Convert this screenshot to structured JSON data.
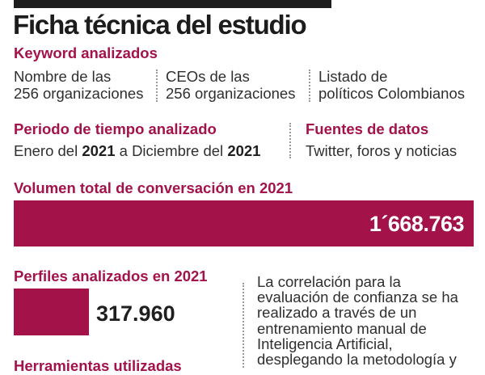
{
  "title": "Ficha técnica del estudio",
  "keywords": {
    "label": "Keyword analizados",
    "items": [
      {
        "line1": "Nombre de las",
        "line2": "256 organizaciones"
      },
      {
        "line1": "CEOs de las",
        "line2": "256 organizaciones"
      },
      {
        "line1": "Listado de",
        "line2": "políticos Colombianos"
      }
    ]
  },
  "period": {
    "label": "Periodo de tiempo analizado",
    "prefix": "Enero del ",
    "start_year": "2021",
    "middle": " a Diciembre del ",
    "end_year": "2021"
  },
  "sources": {
    "label": "Fuentes de datos",
    "value": "Twitter, foros y noticias"
  },
  "conversation": {
    "label": "Volumen total de conversación en 2021",
    "value": "1´668.763"
  },
  "profiles": {
    "label": "Perfiles analizados en 2021",
    "value": "317.960",
    "bar_fraction": 0.19
  },
  "next_label": "Herramientas utilizadas",
  "paragraph": "La correlación para la\nevaluación de confianza se ha\nrealizado a través de un\nentrenamiento manual de\nInteligencia Artificial,\ndesplegando la metodología y",
  "colors": {
    "accent": "#a3134a",
    "text": "#2f2f2f",
    "heading": "#1c1c1c"
  }
}
